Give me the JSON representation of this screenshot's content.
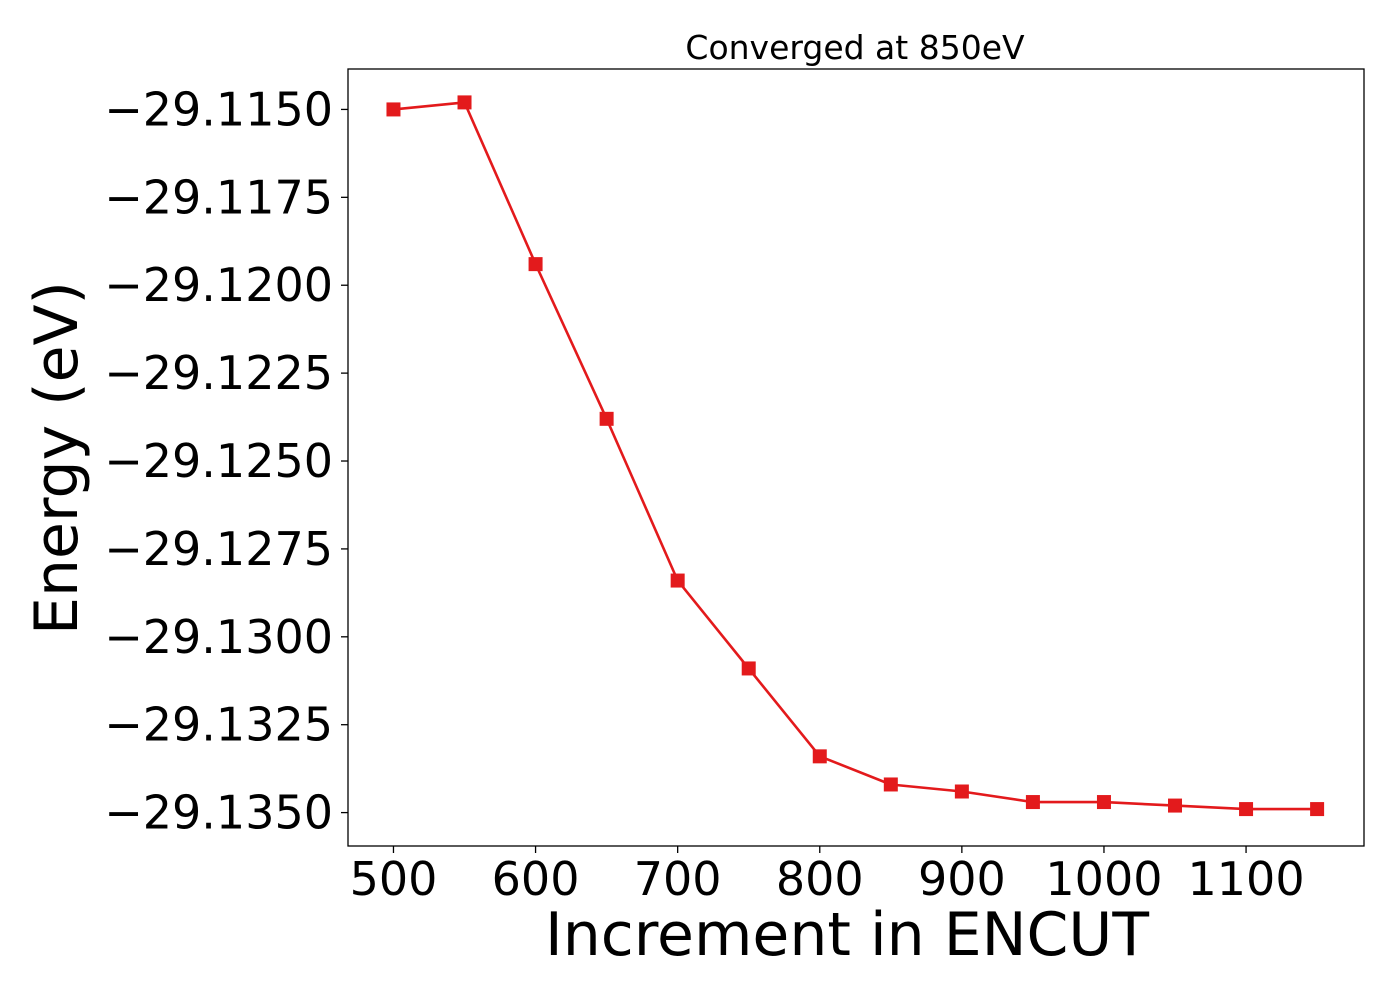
{
  "chart_data": {
    "type": "line",
    "title": "Converged at 850eV",
    "xlabel": "Increment in ENCUT",
    "ylabel": "Energy (eV)",
    "x": [
      500,
      550,
      600,
      650,
      700,
      750,
      800,
      850,
      900,
      950,
      1000,
      1050,
      1100,
      1150
    ],
    "series": [
      {
        "values": [
          -29.115,
          -29.1148,
          -29.1194,
          -29.1238,
          -29.1284,
          -29.1309,
          -29.1334,
          -29.1342,
          -29.1344,
          -29.1347,
          -29.1347,
          -29.1348,
          -29.1349,
          -29.1349
        ],
        "color": "#e31a1c",
        "marker": "square"
      }
    ],
    "xlim": [
      468,
      1183
    ],
    "ylim": [
      -29.13595,
      -29.11385
    ],
    "xticks": [
      500,
      600,
      700,
      800,
      900,
      1000,
      1100
    ],
    "xtick_labels": [
      "500",
      "600",
      "700",
      "800",
      "900",
      "1000",
      "1100"
    ],
    "yticks": [
      -29.115,
      -29.1175,
      -29.12,
      -29.1225,
      -29.125,
      -29.1275,
      -29.13,
      -29.1325,
      -29.135
    ],
    "ytick_labels": [
      "−29.1150",
      "−29.1175",
      "−29.1200",
      "−29.1225",
      "−29.1250",
      "−29.1275",
      "−29.1300",
      "−29.1325",
      "−29.1350"
    ],
    "grid": false,
    "legend": "none"
  }
}
